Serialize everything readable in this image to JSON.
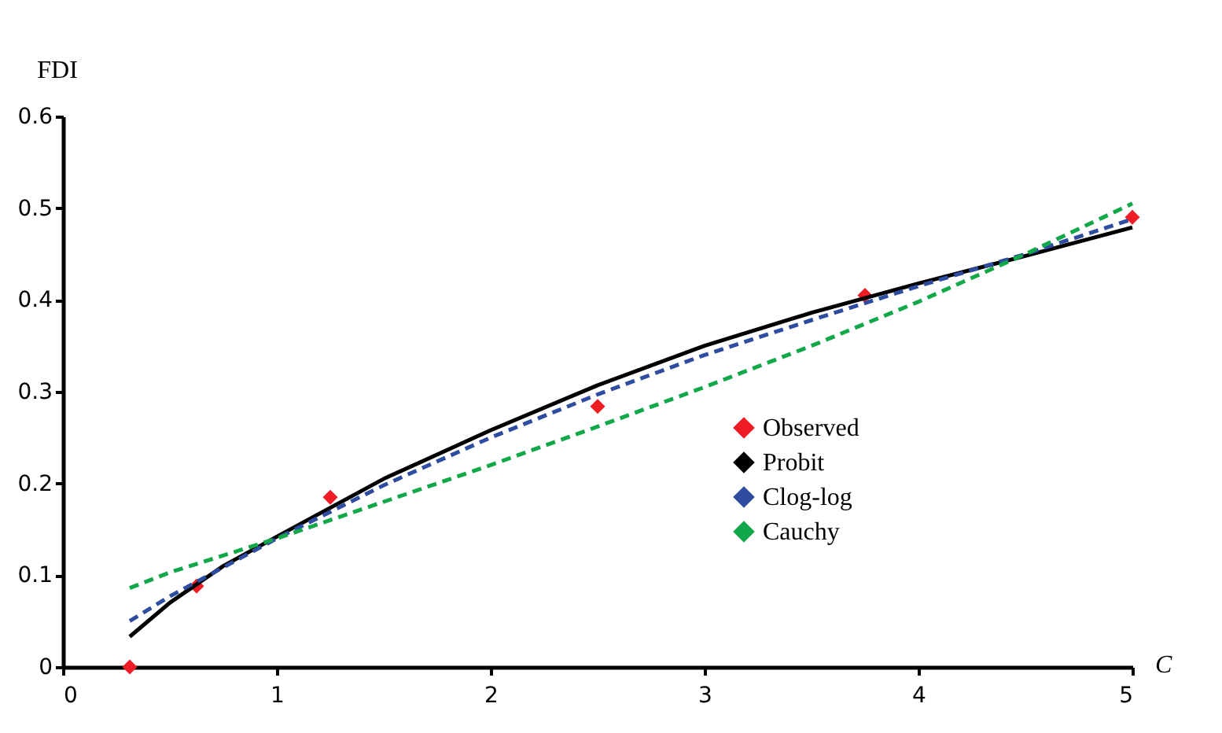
{
  "chart_data": {
    "type": "line",
    "xlabel": "C",
    "ylabel": "FDI",
    "xlim": [
      0,
      5
    ],
    "xticks": [
      0,
      1,
      2,
      3,
      4,
      5
    ],
    "ylim": [
      0,
      0.6
    ],
    "yticks": [
      0,
      0.1,
      0.2,
      0.3,
      0.4,
      0.5,
      0.6
    ],
    "grid": false,
    "legend": "right",
    "series": [
      {
        "name": "Observed",
        "type": "scatter",
        "marker": "diamond",
        "color": "#ee1c25",
        "x": [
          0.3125,
          0.625,
          1.25,
          2.5,
          3.75,
          5
        ],
        "values": [
          0,
          0.088,
          0.185,
          0.284,
          0.405,
          0.49
        ]
      },
      {
        "name": "Probit",
        "line_style": "solid",
        "color": "#000000",
        "x": [
          0.3125,
          0.5,
          0.75,
          1,
          1.5,
          2,
          2.5,
          3,
          3.5,
          4,
          4.5,
          5
        ],
        "values": [
          0.033,
          0.07,
          0.11,
          0.142,
          0.205,
          0.258,
          0.307,
          0.35,
          0.386,
          0.418,
          0.448,
          0.479
        ]
      },
      {
        "name": "Clog-log",
        "line_style": "dashed",
        "color": "#2e4da0",
        "x": [
          0.3125,
          0.5,
          1,
          1.5,
          2,
          2.5,
          3,
          3.5,
          4,
          4.5,
          5
        ],
        "values": [
          0.05,
          0.077,
          0.14,
          0.198,
          0.25,
          0.297,
          0.34,
          0.378,
          0.415,
          0.45,
          0.488
        ]
      },
      {
        "name": "Cauchy",
        "line_style": "dashed",
        "color": "#12a84a",
        "x": [
          0.3125,
          0.5,
          1,
          1.5,
          2,
          2.5,
          3,
          3.5,
          4,
          4.5,
          5
        ],
        "values": [
          0.086,
          0.103,
          0.14,
          0.18,
          0.22,
          0.262,
          0.305,
          0.35,
          0.398,
          0.45,
          0.505
        ]
      }
    ]
  }
}
